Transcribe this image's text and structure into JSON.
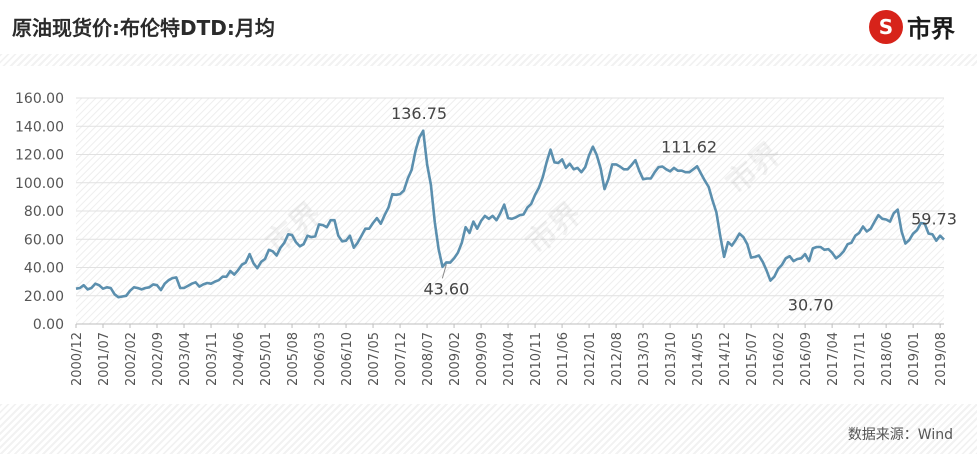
{
  "title": "原油现货价:布伦特DTD:月均",
  "logo": {
    "mark": "S",
    "text": "市界"
  },
  "source": "数据来源：Wind",
  "chart_data": {
    "type": "line",
    "title": "原油现货价:布伦特DTD:月均",
    "xlabel": "",
    "ylabel": "",
    "ylim": [
      0,
      160
    ],
    "yticks": [
      "0.00",
      "20.00",
      "40.00",
      "60.00",
      "80.00",
      "100.00",
      "120.00",
      "140.00",
      "160.00"
    ],
    "x_start": "2000/12",
    "xticks": [
      "2000/12",
      "2001/07",
      "2002/02",
      "2002/09",
      "2003/04",
      "2003/11",
      "2004/06",
      "2005/01",
      "2005/08",
      "2006/03",
      "2006/10",
      "2007/05",
      "2007/12",
      "2008/07",
      "2009/02",
      "2009/09",
      "2010/04",
      "2010/11",
      "2011/06",
      "2012/01",
      "2012/08",
      "2013/03",
      "2013/10",
      "2014/05",
      "2014/12",
      "2015/07",
      "2016/02",
      "2016/09",
      "2017/04",
      "2017/11",
      "2018/06",
      "2019/01",
      "2019/08"
    ],
    "grid": true,
    "series": [
      {
        "color": "#5b8fae",
        "values": [
          25.0,
          25.5,
          27.5,
          24.5,
          25.5,
          28.5,
          27.5,
          25.0,
          26.0,
          25.5,
          21.0,
          19.0,
          19.5,
          20.0,
          23.5,
          26.0,
          25.5,
          24.5,
          25.5,
          26.0,
          28.0,
          27.5,
          24.0,
          28.5,
          31.0,
          32.5,
          33.0,
          25.5,
          25.5,
          27.0,
          28.5,
          29.5,
          26.5,
          28.0,
          29.0,
          28.5,
          30.0,
          31.0,
          33.5,
          33.5,
          37.5,
          35.0,
          38.0,
          42.0,
          43.5,
          49.5,
          43.0,
          39.5,
          44.0,
          46.0,
          52.5,
          51.5,
          48.5,
          54.0,
          57.5,
          63.5,
          63.0,
          58.0,
          55.0,
          56.5,
          62.5,
          61.5,
          62.0,
          70.5,
          70.0,
          68.5,
          73.5,
          73.5,
          62.5,
          58.5,
          59.0,
          62.5,
          54.0,
          57.5,
          62.5,
          67.5,
          67.5,
          71.5,
          75.0,
          71.0,
          77.0,
          82.5,
          92.0,
          91.5,
          92.0,
          94.5,
          103.0,
          109.0,
          122.5,
          132.0,
          136.75,
          113.0,
          98.5,
          72.0,
          53.0,
          40.5,
          43.6,
          43.5,
          46.5,
          50.5,
          57.5,
          68.5,
          64.5,
          72.5,
          67.5,
          73.0,
          76.5,
          74.5,
          76.5,
          73.5,
          78.5,
          84.5,
          75.0,
          74.5,
          75.5,
          77.0,
          77.5,
          82.5,
          85.0,
          91.5,
          96.5,
          104.0,
          114.5,
          123.5,
          114.5,
          114.0,
          116.5,
          110.5,
          113.5,
          109.5,
          110.5,
          107.5,
          111.0,
          119.5,
          125.5,
          119.5,
          110.0,
          95.5,
          102.5,
          113.0,
          113.0,
          111.5,
          109.5,
          109.5,
          112.5,
          116.0,
          108.5,
          102.5,
          103.0,
          103.0,
          107.5,
          111.0,
          111.5,
          109.5,
          108.0,
          110.5,
          108.5,
          108.5,
          107.5,
          107.5,
          109.5,
          111.62,
          106.5,
          101.5,
          97.0,
          87.5,
          79.0,
          62.5,
          47.5,
          58.0,
          55.5,
          59.5,
          64.0,
          61.5,
          56.5,
          47.0,
          47.5,
          48.5,
          44.0,
          38.0,
          30.7,
          33.5,
          39.0,
          42.0,
          46.5,
          48.0,
          44.5,
          46.0,
          46.5,
          49.5,
          44.5,
          53.5,
          54.5,
          54.5,
          52.5,
          53.0,
          50.5,
          46.5,
          48.5,
          51.5,
          56.5,
          57.5,
          62.5,
          64.5,
          69.0,
          65.5,
          67.5,
          72.5,
          77.0,
          74.5,
          74.0,
          72.5,
          78.5,
          81.0,
          65.5,
          57.0,
          59.5,
          64.0,
          66.5,
          71.5,
          71.0,
          64.0,
          63.5,
          59.0,
          62.5,
          59.73
        ]
      }
    ],
    "annotations": [
      {
        "label": "136.75",
        "value": 136.75,
        "index": 91
      },
      {
        "label": "43.60",
        "value": 43.6,
        "index": 96
      },
      {
        "label": "111.62",
        "value": 111.62,
        "index": 161
      },
      {
        "label": "30.70",
        "value": 30.7,
        "index": 192
      },
      {
        "label": "59.73",
        "value": 59.73,
        "index": 225
      }
    ],
    "watermark": "市界"
  }
}
